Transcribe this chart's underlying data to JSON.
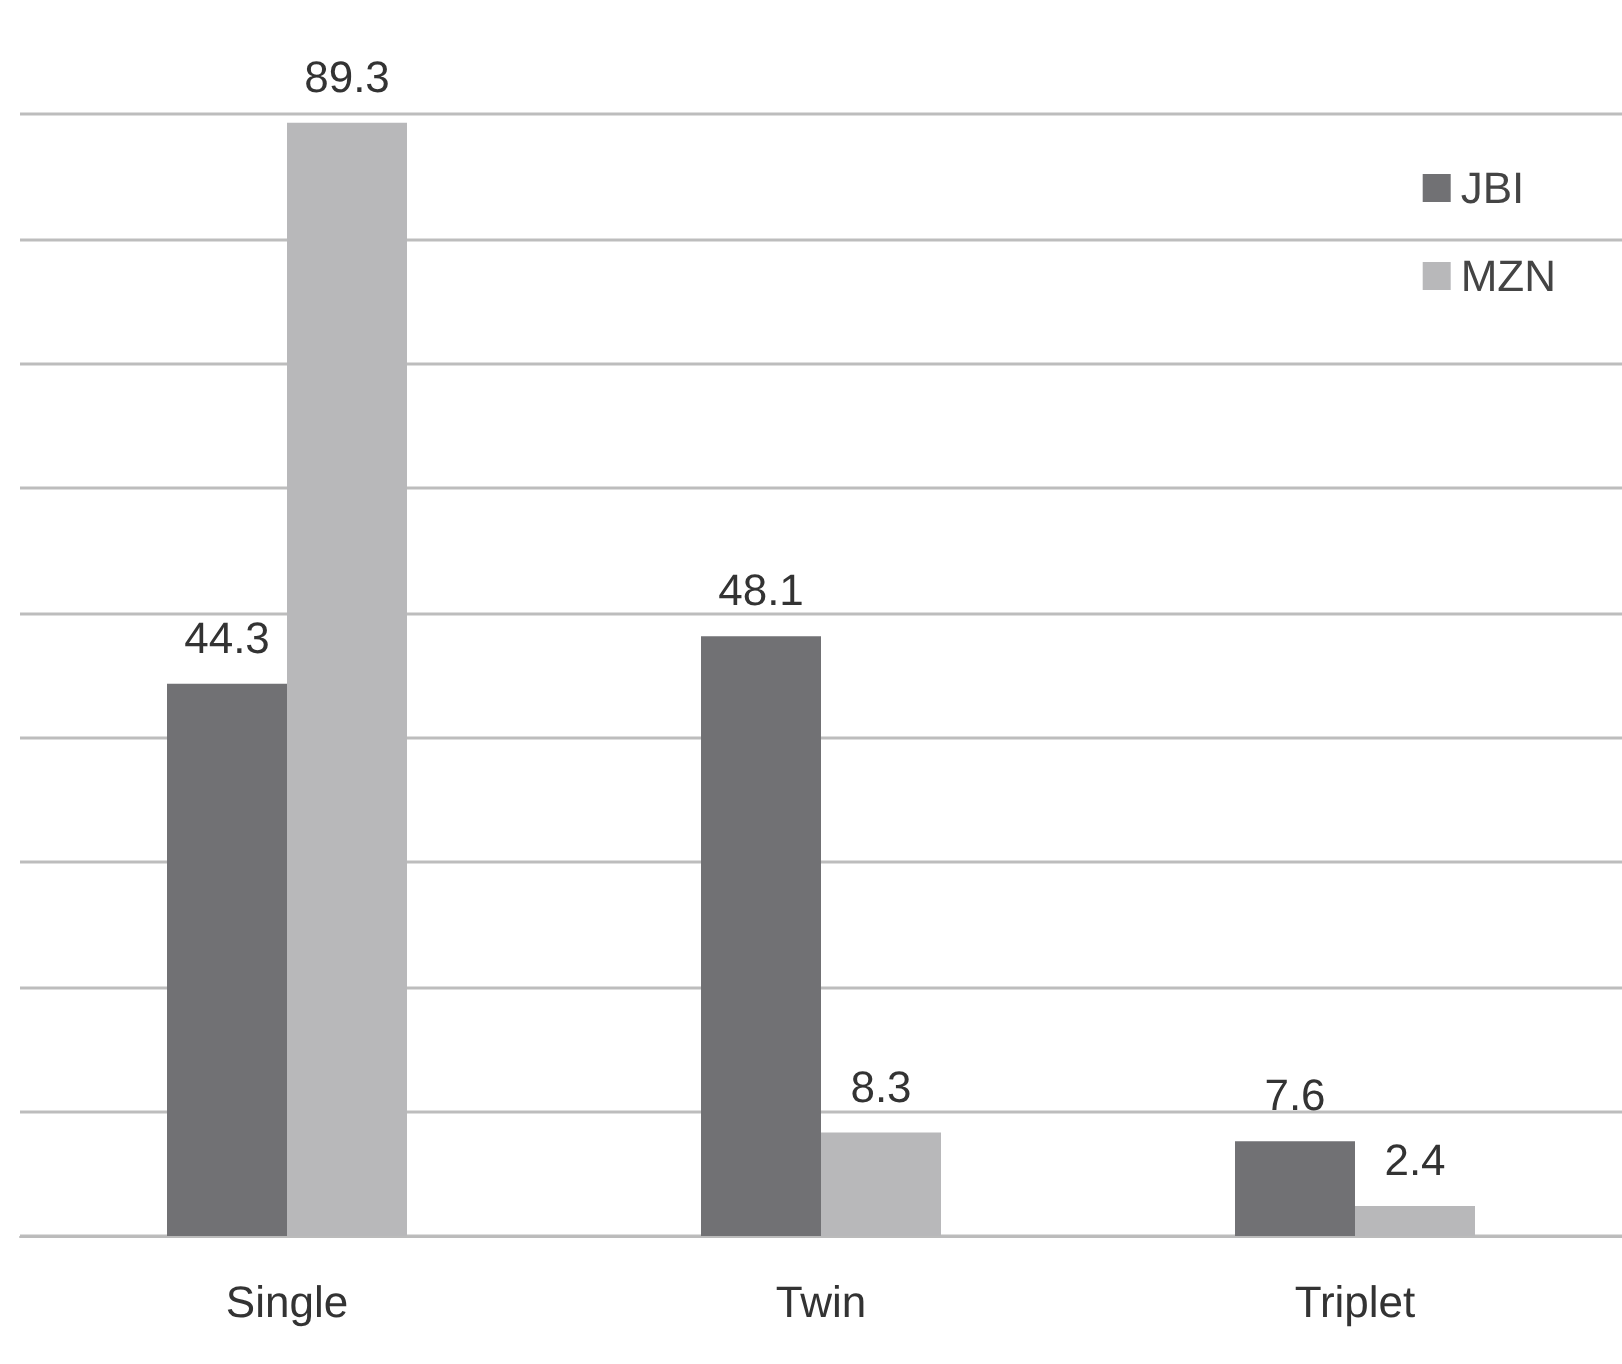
{
  "chart_data": {
    "type": "bar",
    "categories": [
      "Single",
      "Twin",
      "Triplet"
    ],
    "series": [
      {
        "name": "JBI",
        "color": "#717174",
        "values": [
          44.3,
          48.1,
          7.6
        ]
      },
      {
        "name": "MZN",
        "color": "#b8b8ba",
        "values": [
          89.3,
          8.3,
          2.4
        ]
      }
    ],
    "ylim": [
      0,
      90
    ],
    "yticks": [
      {
        "value": 0,
        "label": null
      },
      {
        "value": 10,
        "label": null
      },
      {
        "value": 20,
        "label": null
      },
      {
        "value": 30,
        "label": null
      },
      {
        "value": 40,
        "label": null
      },
      {
        "value": 50,
        "label": null
      },
      {
        "value": 60,
        "label": null
      },
      {
        "value": 70,
        "label": null
      },
      {
        "value": 80,
        "label": null
      },
      {
        "value": 90,
        "label": null
      }
    ],
    "tick_labels": "x",
    "grid": "y",
    "legend": "top right",
    "data_labels": true
  }
}
